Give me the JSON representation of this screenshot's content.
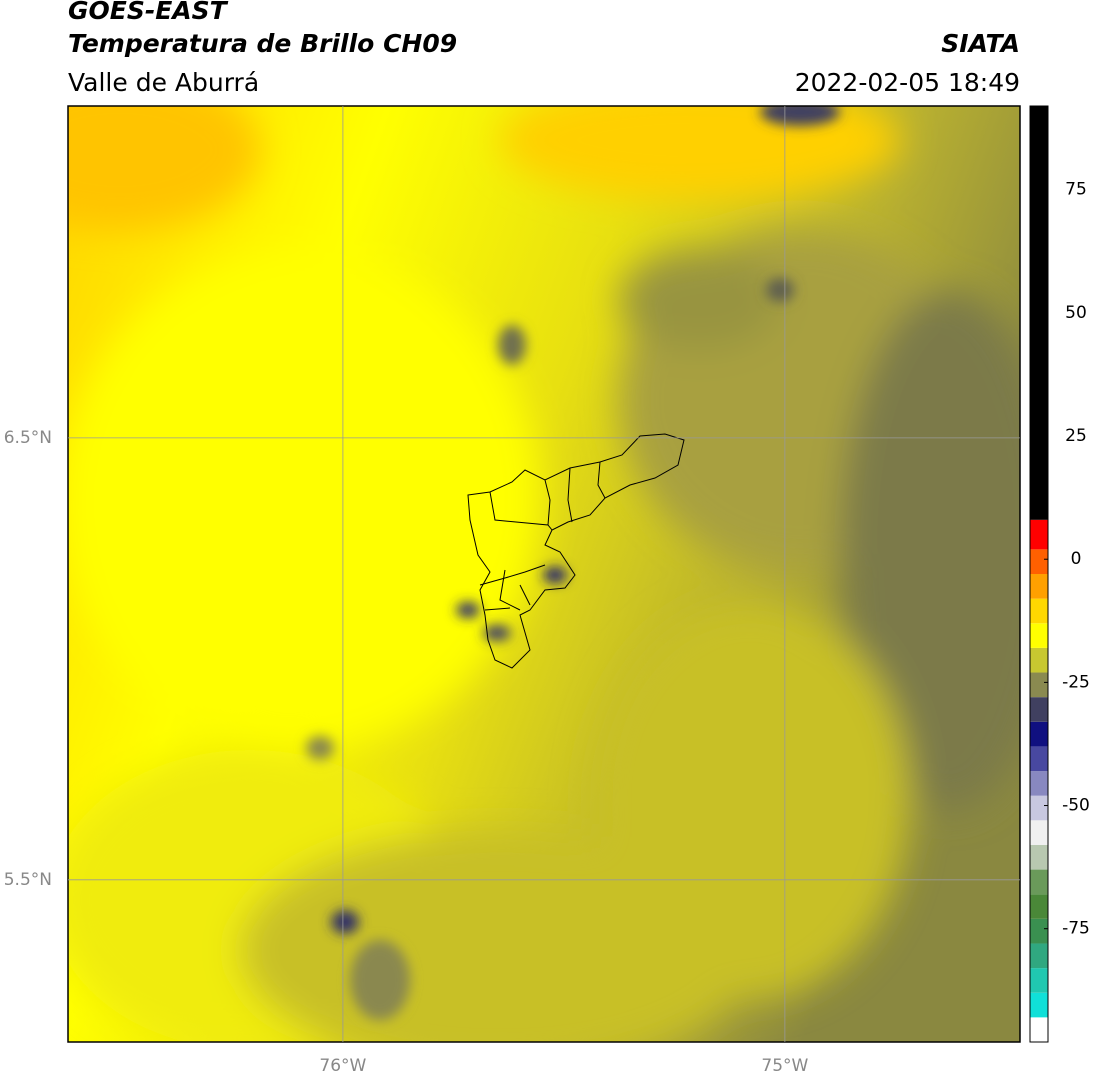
{
  "header": {
    "title": "GOES-EAST",
    "subtitle": "Temperatura de Brillo CH09",
    "region": "Valle de Aburrá",
    "source": "SIATA",
    "datetime": "2022-02-05 18:49"
  },
  "chart_data": {
    "type": "map",
    "xlim": [
      -76.622,
      -74.468
    ],
    "ylim": [
      5.133,
      7.251
    ],
    "xticks": [
      {
        "value": -76,
        "label": "76°W"
      },
      {
        "value": -75,
        "label": "75°W"
      }
    ],
    "yticks": [
      {
        "value": 5.5,
        "label": "5.5°N"
      },
      {
        "value": 6.5,
        "label": "6.5°N"
      }
    ],
    "grid": true,
    "colorbar": {
      "lim": [
        -98,
        92
      ],
      "ticks": [
        -75,
        -50,
        -25,
        0,
        25,
        50,
        75
      ],
      "bounds": [
        -98,
        -93,
        -88,
        -83,
        -78,
        -73,
        -68,
        -63,
        -58,
        -53,
        -48,
        -43,
        -38,
        -33,
        -28,
        -23,
        -18,
        -13,
        -8,
        -3,
        2,
        8,
        92
      ],
      "colors": [
        "#ffffff",
        "#10e0d8",
        "#20c8b0",
        "#30a880",
        "#3a9050",
        "#4a8838",
        "#6a9a5a",
        "#b8c8b0",
        "#f0f0f0",
        "#c8c8e0",
        "#8888c0",
        "#4848a0",
        "#101080",
        "#404060",
        "#8a8a50",
        "#c8c830",
        "#ffff00",
        "#ffd800",
        "#ffa000",
        "#ff6000",
        "#ff0000",
        "#000000"
      ]
    }
  }
}
